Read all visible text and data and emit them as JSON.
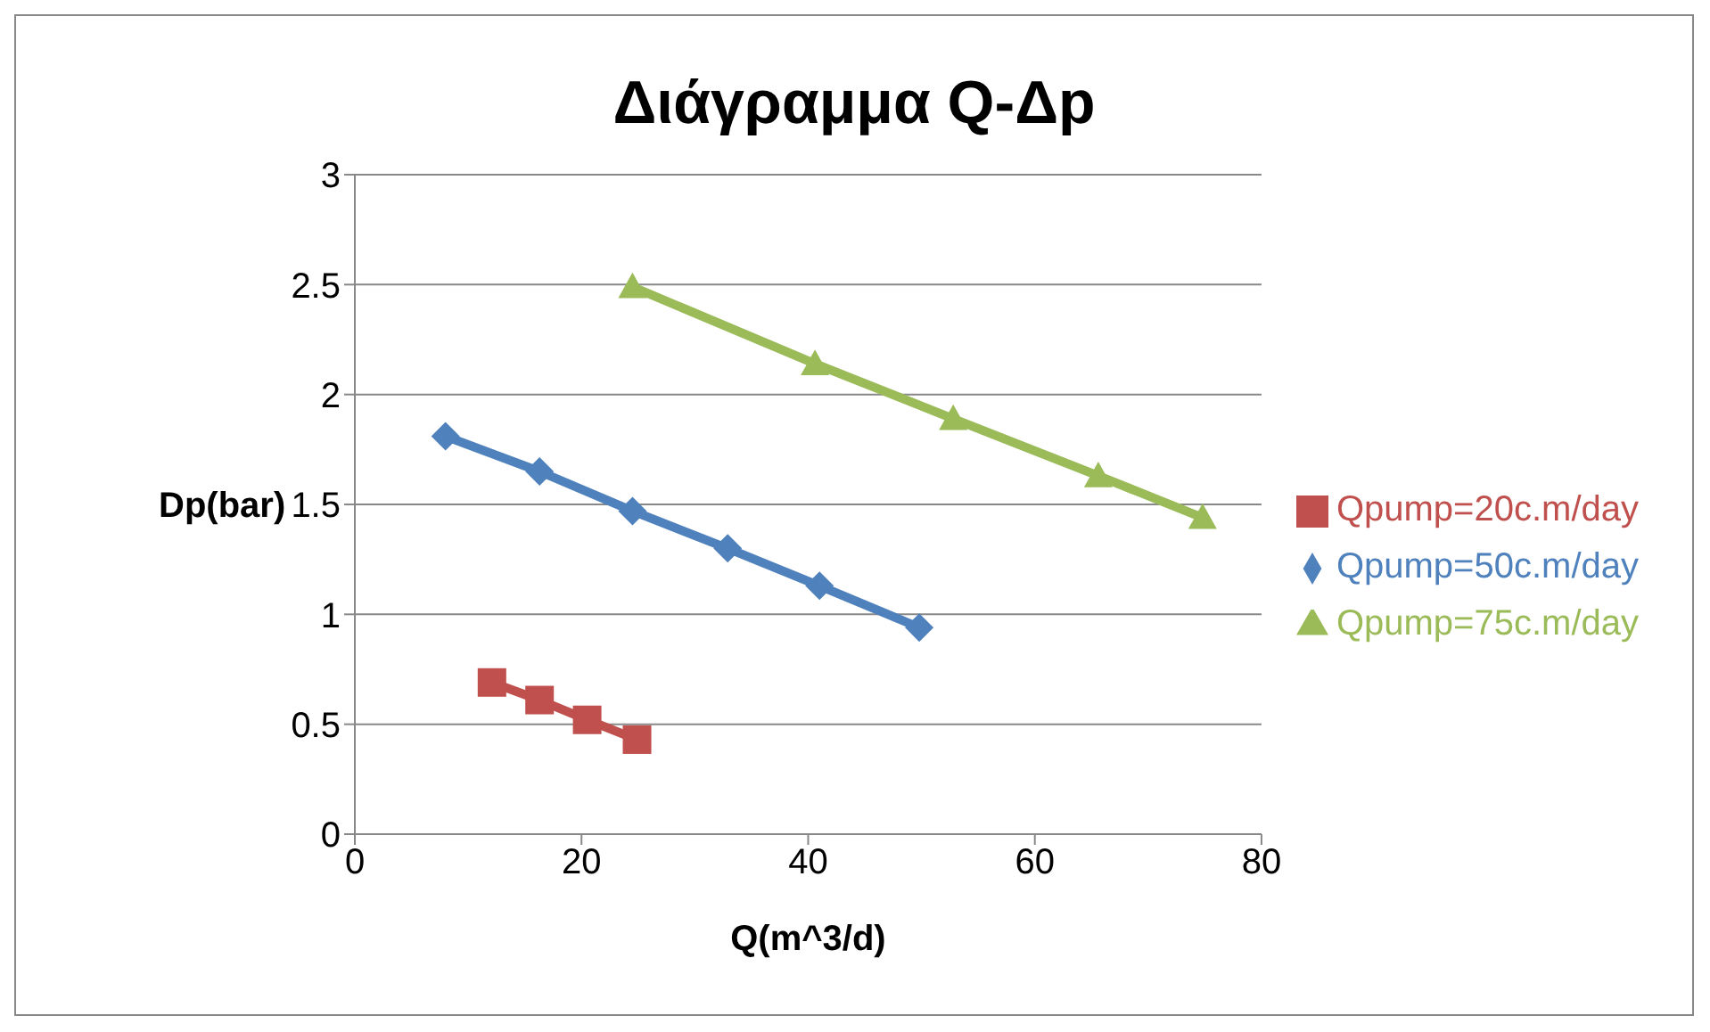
{
  "chart_data": {
    "type": "line",
    "title": "Διάγραμμα Q-Δp",
    "xlabel": "Q(m^3/d)",
    "ylabel": "Dp(bar)",
    "xlim": [
      0,
      80
    ],
    "xticks": [
      0,
      20,
      40,
      60,
      80
    ],
    "ylim": [
      0,
      3
    ],
    "yticks": [
      0,
      0.5,
      1,
      1.5,
      2,
      2.5,
      3
    ],
    "grid": "y",
    "legend": "right",
    "series": [
      {
        "name": "Qpump=20c.m/day",
        "color": "#c0504d",
        "marker": "square",
        "x": [
          12.1,
          16.3,
          20.5,
          24.9
        ],
        "values": [
          0.69,
          0.61,
          0.52,
          0.43
        ]
      },
      {
        "name": "Qpump=50c.m/day",
        "color": "#4f81bd",
        "marker": "diamond",
        "x": [
          8.0,
          16.3,
          24.5,
          32.9,
          41.0,
          49.8
        ],
        "values": [
          1.81,
          1.65,
          1.47,
          1.3,
          1.13,
          0.94
        ]
      },
      {
        "name": "Qpump=75c.m/day",
        "color": "#9bbb59",
        "marker": "triangle",
        "x": [
          24.5,
          40.6,
          52.8,
          65.6,
          74.8
        ],
        "values": [
          2.49,
          2.14,
          1.89,
          1.63,
          1.44
        ]
      }
    ]
  }
}
